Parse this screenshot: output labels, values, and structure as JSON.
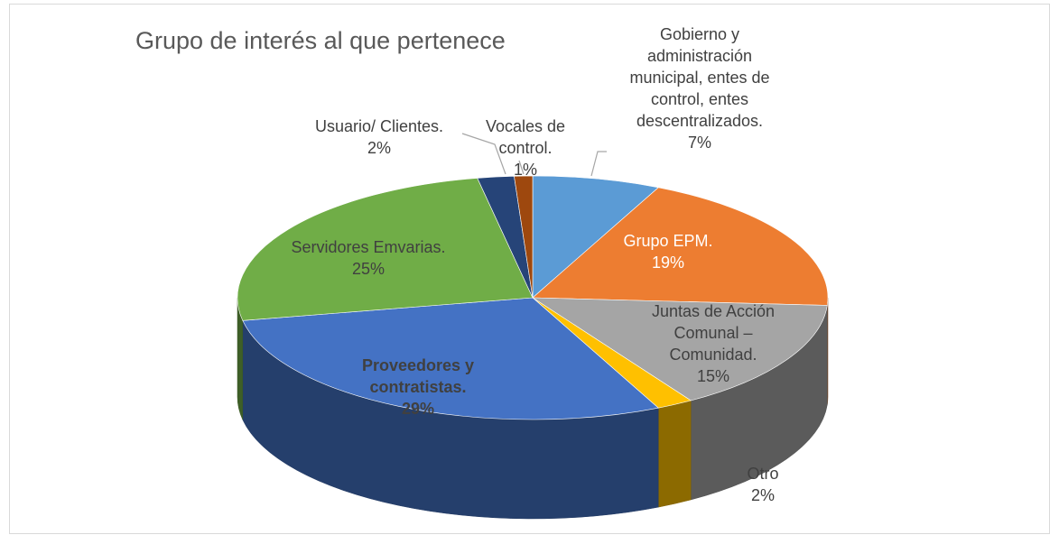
{
  "chart_data": {
    "type": "pie",
    "title": "Grupo de interés al que pertenece",
    "categories": [
      "Gobierno y administración municipal, entes de control, entes descentralizados.",
      "Grupo EPM.",
      "Juntas de Acción Comunal – Comunidad.",
      "Otro",
      "Proveedores y contratistas.",
      "Servidores Emvarias.",
      "Usuario/ Clientes.",
      "Vocales de control."
    ],
    "values": [
      7,
      19,
      15,
      2,
      29,
      25,
      2,
      1
    ],
    "value_labels": [
      "7%",
      "19%",
      "15%",
      "2%",
      "29%",
      "25%",
      "2%",
      "1%"
    ],
    "colors": [
      "#5b9bd5",
      "#ed7d31",
      "#a5a5a5",
      "#ffc000",
      "#4472c4",
      "#70ad47",
      "#264478",
      "#9e480e"
    ]
  }
}
